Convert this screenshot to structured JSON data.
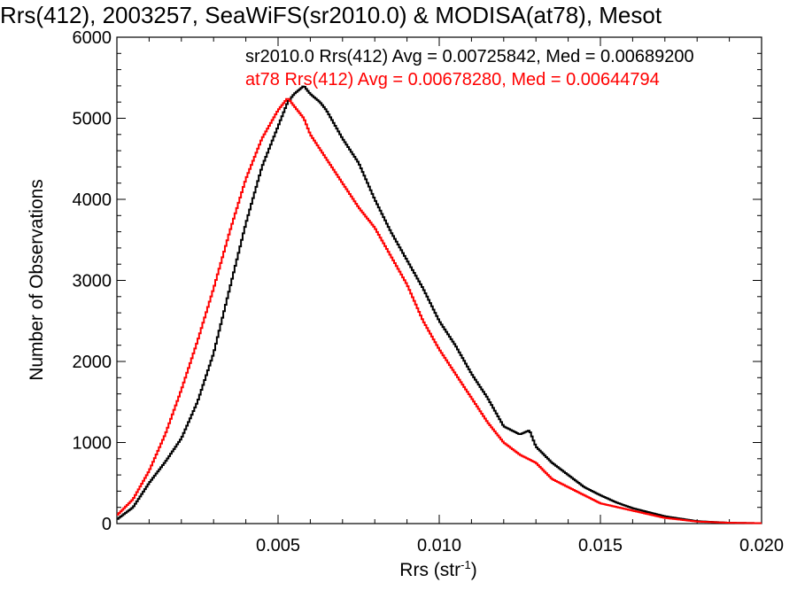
{
  "chart_data": {
    "type": "line",
    "title": "Rrs(412), 2003257, SeaWiFS(sr2010.0) & MODISA(at78), Mesot",
    "xlabel": "Rrs (str",
    "xlabel_sup": "-1",
    "xlabel_end": ")",
    "ylabel": "Number of Observations",
    "xlim": [
      0.0,
      0.02
    ],
    "ylim": [
      0,
      6000
    ],
    "x_ticks": [
      "0.005",
      "0.010",
      "0.015",
      "0.020"
    ],
    "y_ticks": [
      "0",
      "1000",
      "2000",
      "3000",
      "4000",
      "5000",
      "6000"
    ],
    "grid": false,
    "legend_position": "top-right",
    "series": [
      {
        "name": "sr2010.0 Rrs(412) Avg = 0.00725842, Med = 0.00689200",
        "color": "#000000",
        "x": [
          0.0,
          0.0005,
          0.001,
          0.0015,
          0.002,
          0.0025,
          0.003,
          0.0035,
          0.004,
          0.0045,
          0.005,
          0.0053,
          0.0055,
          0.0058,
          0.006,
          0.0063,
          0.0065,
          0.007,
          0.0075,
          0.008,
          0.0085,
          0.009,
          0.0095,
          0.01,
          0.0105,
          0.011,
          0.0115,
          0.012,
          0.0125,
          0.0128,
          0.013,
          0.0135,
          0.014,
          0.0145,
          0.015,
          0.0155,
          0.016,
          0.017,
          0.018,
          0.019,
          0.02
        ],
        "values": [
          50,
          200,
          500,
          760,
          1050,
          1500,
          2100,
          2900,
          3700,
          4400,
          4900,
          5200,
          5300,
          5400,
          5300,
          5200,
          5100,
          4750,
          4450,
          4000,
          3600,
          3250,
          2900,
          2500,
          2200,
          1850,
          1550,
          1200,
          1100,
          1150,
          950,
          750,
          600,
          450,
          350,
          260,
          190,
          90,
          30,
          10,
          5
        ]
      },
      {
        "name": "at78 Rrs(412) Avg = 0.00678280, Med = 0.00644794",
        "color": "#ff0000",
        "x": [
          0.0,
          0.0005,
          0.001,
          0.0015,
          0.002,
          0.0025,
          0.003,
          0.0035,
          0.004,
          0.0045,
          0.005,
          0.0053,
          0.0055,
          0.0058,
          0.006,
          0.0065,
          0.007,
          0.0075,
          0.008,
          0.0085,
          0.009,
          0.0095,
          0.01,
          0.0105,
          0.011,
          0.0115,
          0.012,
          0.0125,
          0.013,
          0.0135,
          0.014,
          0.015,
          0.016,
          0.017,
          0.018,
          0.019,
          0.02
        ],
        "values": [
          100,
          300,
          650,
          1100,
          1650,
          2250,
          2900,
          3600,
          4250,
          4750,
          5100,
          5250,
          5150,
          5000,
          4800,
          4500,
          4200,
          3900,
          3650,
          3300,
          2950,
          2500,
          2150,
          1850,
          1550,
          1250,
          1000,
          850,
          750,
          550,
          450,
          250,
          160,
          70,
          25,
          10,
          5
        ]
      }
    ]
  }
}
